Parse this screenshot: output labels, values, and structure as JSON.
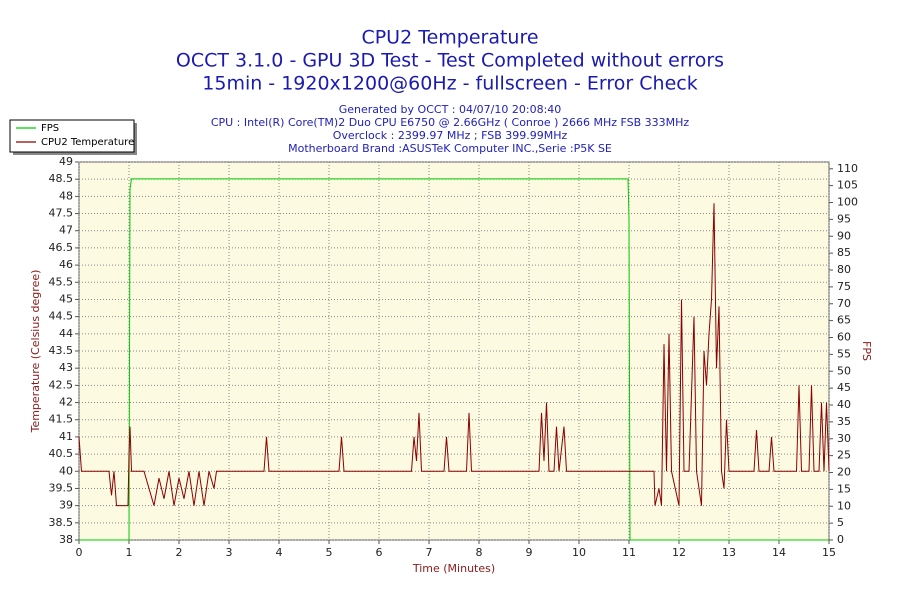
{
  "chart_data": {
    "type": "line",
    "title": "CPU2 Temperature",
    "subtitle_lines": [
      "OCCT 3.1.0 - GPU 3D Test - Test Completed without errors",
      "15min - 1920x1200@60Hz - fullscreen - Error Check"
    ],
    "info_lines": [
      "Generated by OCCT : 04/07/10 20:08:40",
      "CPU : Intel(R) Core(TM)2 Duo CPU E6750 @ 2.66GHz ( Conroe ) 2666 MHz FSB 333MHz",
      "Overclock : 2399.97 MHz ; FSB 399.99MHz",
      "Motherboard Brand :ASUSTeK Computer INC.,Serie :P5K SE"
    ],
    "xlabel": "Time (Minutes)",
    "ylabel": "Temperature (Celsius degree)",
    "y2label": "FPS",
    "xlim": [
      0,
      15
    ],
    "xticks": [
      0,
      1,
      2,
      3,
      4,
      5,
      6,
      7,
      8,
      9,
      10,
      11,
      12,
      13,
      14,
      15
    ],
    "ylim": [
      38,
      49
    ],
    "yticks": [
      38,
      38.5,
      39,
      39.5,
      40,
      40.5,
      41,
      41.5,
      42,
      42.5,
      43,
      43.5,
      44,
      44.5,
      45,
      45.5,
      46,
      46.5,
      47,
      47.5,
      48,
      48.5,
      49
    ],
    "y2lim": [
      0,
      112
    ],
    "y2ticks": [
      0,
      5,
      10,
      15,
      20,
      25,
      30,
      35,
      40,
      45,
      50,
      55,
      60,
      65,
      70,
      75,
      80,
      85,
      90,
      95,
      100,
      105,
      110
    ],
    "grid": true,
    "legend": "top-left",
    "x": [
      0,
      0.05,
      0.6,
      0.65,
      0.7,
      0.75,
      0.98,
      1.0,
      1.02,
      1.05,
      1.3,
      1.4,
      1.5,
      1.6,
      1.7,
      1.8,
      1.9,
      2.0,
      2.1,
      2.2,
      2.3,
      2.4,
      2.5,
      2.6,
      2.7,
      2.75,
      3.7,
      3.75,
      3.8,
      5.2,
      5.25,
      5.3,
      6.65,
      6.7,
      6.75,
      6.8,
      6.85,
      7.3,
      7.35,
      7.4,
      7.75,
      7.8,
      7.85,
      9.2,
      9.25,
      9.3,
      9.35,
      9.4,
      9.5,
      9.55,
      9.6,
      9.7,
      9.75,
      10.98,
      11.0,
      11.02,
      11.5,
      11.52,
      11.6,
      11.65,
      11.7,
      11.75,
      11.8,
      11.85,
      12.0,
      12.05,
      12.1,
      12.2,
      12.3,
      12.35,
      12.45,
      12.5,
      12.55,
      12.6,
      12.65,
      12.7,
      12.75,
      12.8,
      12.85,
      12.9,
      12.95,
      13.0,
      13.5,
      13.55,
      13.6,
      13.8,
      13.85,
      13.9,
      14.35,
      14.4,
      14.45,
      14.6,
      14.65,
      14.7,
      14.8,
      14.85,
      14.9,
      14.95,
      15.0
    ],
    "series": [
      {
        "name": "FPS",
        "color": "#00cc00",
        "axis": "y2",
        "values": [
          0,
          0,
          0,
          0,
          0,
          0,
          0,
          0,
          104,
          107,
          107,
          107,
          107,
          107,
          107,
          107,
          107,
          107,
          107,
          107,
          107,
          107,
          107,
          107,
          107,
          107,
          107,
          107,
          107,
          107,
          107,
          107,
          107,
          107,
          107,
          107,
          107,
          107,
          107,
          107,
          107,
          107,
          107,
          107,
          107,
          107,
          107,
          107,
          107,
          107,
          107,
          107,
          107,
          107,
          95,
          0,
          0,
          0,
          0,
          0,
          0,
          0,
          0,
          0,
          0,
          0,
          0,
          0,
          0,
          0,
          0,
          0,
          0,
          0,
          0,
          0,
          0,
          0,
          0,
          0,
          0,
          0,
          0,
          0,
          0,
          0,
          0,
          0,
          0,
          0,
          0,
          0,
          0,
          0,
          0,
          0,
          0,
          0,
          0
        ]
      },
      {
        "name": "CPU2 Temperature",
        "color": "#8b0000",
        "values": [
          41,
          40,
          40,
          39.3,
          40,
          39,
          39,
          40.5,
          41.3,
          40,
          40,
          39.5,
          39,
          39.8,
          39.2,
          40,
          39,
          39.8,
          39.2,
          40,
          39,
          40,
          39,
          40,
          39.5,
          40,
          40,
          41,
          40,
          40,
          41,
          40,
          40,
          41,
          40.3,
          41.7,
          40,
          40,
          41,
          40,
          40,
          41.7,
          40,
          40,
          41.7,
          40.3,
          42,
          40,
          40,
          41.3,
          40,
          41.3,
          40,
          40,
          40,
          40,
          40,
          39,
          39.5,
          39,
          43.7,
          40,
          44,
          40,
          39,
          45,
          40,
          40,
          44.5,
          40,
          39,
          43.5,
          42.5,
          44,
          45,
          47.8,
          43,
          44.8,
          40,
          39.5,
          41.5,
          40,
          40,
          41.2,
          40,
          40,
          41,
          40,
          40,
          42.5,
          40,
          40,
          42.5,
          40,
          40,
          42,
          40,
          42,
          40
        ]
      }
    ]
  }
}
